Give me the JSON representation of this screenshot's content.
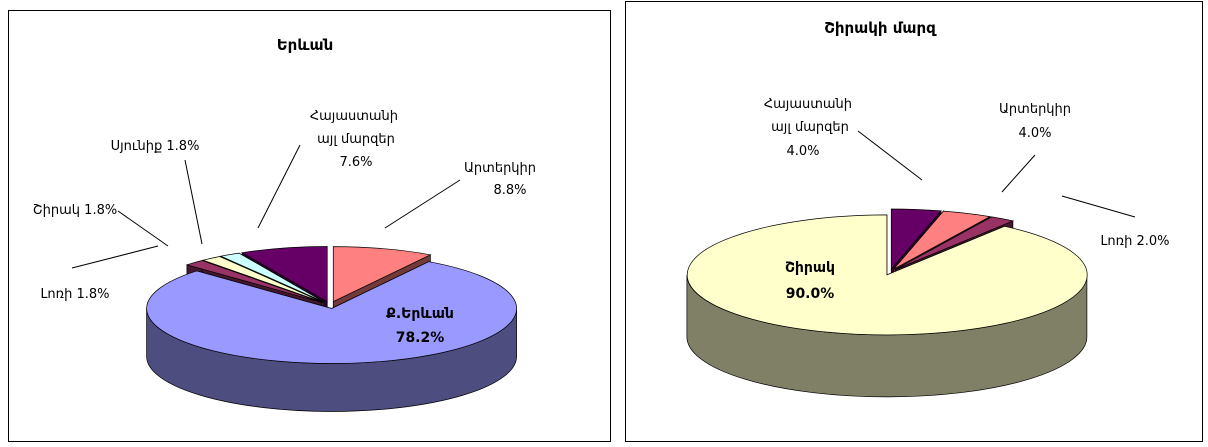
{
  "chart_data": [
    {
      "type": "pie",
      "title": "Երևան",
      "categories": [
        "Արտերկիր",
        "Ք.Երևան",
        "Լոռի",
        "Շիրակ",
        "Սյունիք",
        "Հայաստանի այլ մարզեր"
      ],
      "values": [
        8.8,
        78.2,
        1.8,
        1.8,
        1.8,
        7.6
      ],
      "value_labels": [
        "8.8%",
        "78.2%",
        "1.8%",
        "1.8%",
        "1.8%",
        "7.6%"
      ],
      "colors": [
        "#ff8080",
        "#9999ff",
        "#993366",
        "#ffffcc",
        "#ccffff",
        "#660066"
      ]
    },
    {
      "type": "pie",
      "title": "Շիրակի մարզ",
      "categories": [
        "Հայաստանի այլ մարզեր",
        "Արտերկիր",
        "Լոռի",
        "Շիրակ"
      ],
      "values": [
        4.0,
        4.0,
        2.0,
        90.0
      ],
      "value_labels": [
        "4.0%",
        "4.0%",
        "2.0%",
        "90.0%"
      ],
      "colors": [
        "#660066",
        "#ff8080",
        "#993366",
        "#ffffcc"
      ]
    }
  ]
}
